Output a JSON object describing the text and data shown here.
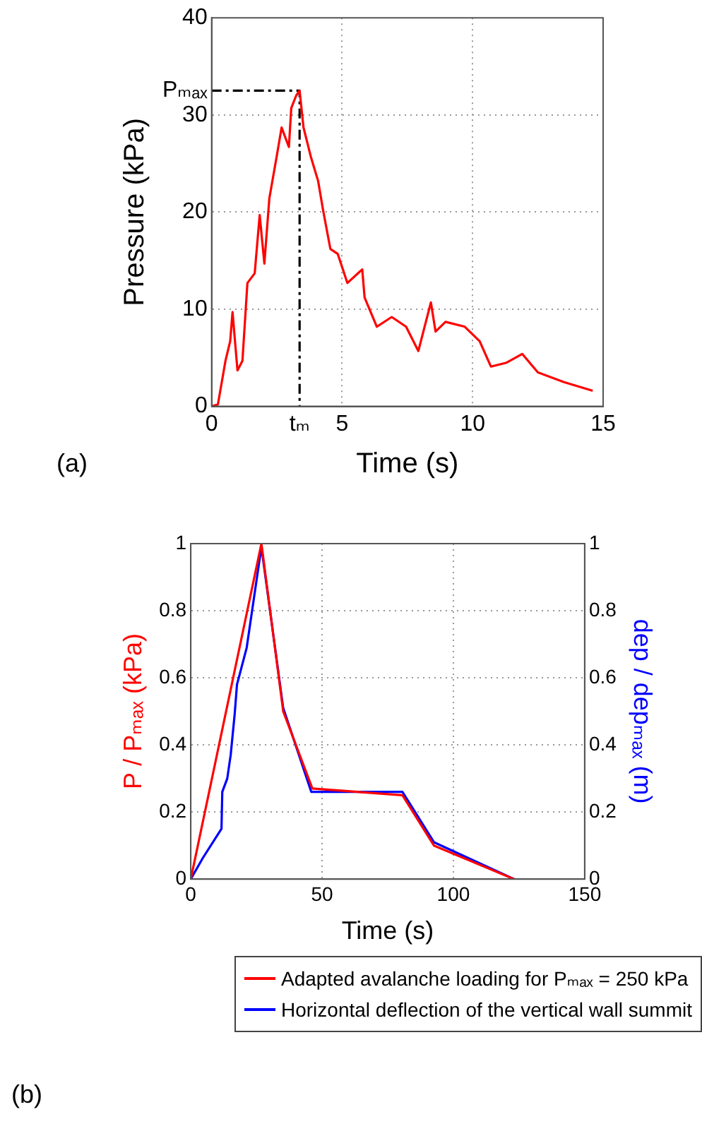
{
  "chart_data": [
    {
      "type": "line",
      "xlabel": "Time (s)",
      "ylabel": "Pressure (kPa)",
      "xlim": [
        0,
        15
      ],
      "ylim": [
        0,
        40
      ],
      "xticks": [
        0,
        {
          "value": 3.37,
          "label": "tₘ"
        },
        5,
        10,
        15
      ],
      "yticks": [
        0,
        10,
        20,
        30,
        40,
        {
          "value": 32.5,
          "label": "Pₘₐₓ"
        }
      ],
      "grid": true,
      "marker": "none",
      "annotations": [
        "(a)"
      ],
      "series": [
        {
          "color": "#ff0000",
          "x": [
            0,
            0.24,
            0.53,
            0.71,
            0.8,
            0.99,
            1.18,
            1.37,
            1.65,
            1.84,
            2.02,
            2.21,
            2.49,
            2.68,
            2.96,
            3.05,
            3.24,
            3.37,
            3.52,
            3.8,
            4.08,
            4.27,
            4.55,
            4.83,
            5.2,
            5.77,
            5.86,
            6.33,
            6.9,
            7.45,
            7.92,
            8.4,
            8.58,
            8.96,
            9.7,
            10.27,
            10.7,
            11.3,
            11.9,
            12.5,
            13.5,
            14.6
          ],
          "values": [
            0,
            0.2,
            4.7,
            6.7,
            9.7,
            3.7,
            4.7,
            12.7,
            13.7,
            19.7,
            14.7,
            21.4,
            25.7,
            28.7,
            26.7,
            30.7,
            32,
            32.5,
            28.7,
            25.7,
            23.2,
            20.2,
            16.2,
            15.7,
            12.7,
            14.1,
            11.2,
            8.2,
            9.2,
            8.2,
            5.7,
            10.7,
            7.7,
            8.7,
            8.2,
            6.7,
            4.1,
            4.5,
            5.4,
            3.5,
            2.5,
            1.6
          ]
        },
        {
          "color": "#000000",
          "line_style": "dashed",
          "x": [
            0,
            3.37,
            3.37
          ],
          "values": [
            32.5,
            32.5,
            0
          ]
        }
      ]
    },
    {
      "type": "line",
      "xlabel": "Time (s)",
      "ylabel": "P / Pₘₐₓ (kPa)",
      "y2label": "dep / depₘₐₓ (m)",
      "xlim": [
        0,
        150
      ],
      "ylim": [
        0,
        1
      ],
      "y2lim": [
        0,
        1
      ],
      "xticks": [
        0,
        50,
        100,
        150
      ],
      "yticks": [
        0,
        0.2,
        0.4,
        0.6,
        0.8,
        1
      ],
      "y2ticks": [
        0,
        0.2,
        0.4,
        0.6,
        0.8,
        1
      ],
      "grid": true,
      "marker": "none",
      "legend": "bottom",
      "annotations": [
        "(b)"
      ],
      "series": [
        {
          "name": "Adapted avalanche loading for Pₘₐₓ = 250 kPa",
          "color": "#ff0000",
          "x": [
            0,
            26.9,
            35.2,
            46.3,
            80.6,
            92.6,
            123.1
          ],
          "values": [
            0,
            1,
            0.5,
            0.27,
            0.25,
            0.1,
            0
          ]
        },
        {
          "name": "Horizontal deflection of the vertical wall summit",
          "color": "#0000ff",
          "axis": "y2",
          "x": [
            0,
            4.6,
            11.7,
            12,
            13.9,
            15.2,
            16.7,
            17.6,
            21.3,
            24.1,
            26.9,
            35.2,
            45.9,
            80.6,
            92.6,
            123.1
          ],
          "values": [
            0,
            0.063,
            0.15,
            0.26,
            0.3,
            0.37,
            0.49,
            0.58,
            0.69,
            0.84,
            0.99,
            0.51,
            0.26,
            0.26,
            0.11,
            0
          ]
        }
      ]
    }
  ]
}
